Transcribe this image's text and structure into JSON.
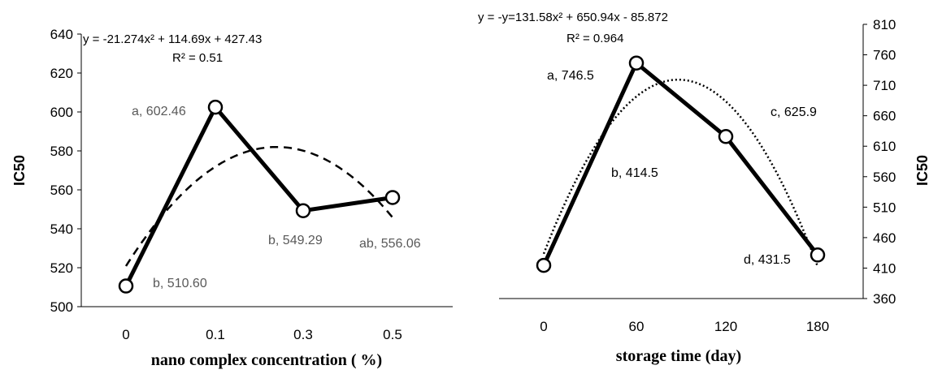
{
  "chart_data": [
    {
      "type": "line",
      "x_categories": [
        "0",
        "0.1",
        "0.3",
        "0.5"
      ],
      "series": [
        {
          "values": [
            510.6,
            602.46,
            549.29,
            556.06
          ],
          "labels": [
            "b, 510.60",
            "a, 602.46",
            "b, 549.29",
            "ab, 556.06"
          ]
        }
      ],
      "trendline": {
        "type": "polynomial",
        "order": 2,
        "coefficients": [
          -21.274,
          114.69,
          427.43
        ],
        "equation": "y = -21.274x² + 114.69x + 427.43",
        "r2": "R² = 0.51",
        "style": "dashed"
      },
      "xlabel": "nano complex concentration ( %)",
      "ylabel": "IC50",
      "y_axis_side": "left",
      "ylim": [
        500,
        640
      ],
      "yticks": [
        "500",
        "520",
        "540",
        "560",
        "580",
        "600",
        "620",
        "640"
      ],
      "grid": false
    },
    {
      "type": "line",
      "x_categories": [
        "0",
        "60",
        "120",
        "180"
      ],
      "series": [
        {
          "values": [
            414.5,
            746.5,
            625.9,
            431.5
          ],
          "labels": [
            "b, 414.5",
            "a, 746.5",
            "c, 625.9",
            "d, 431.5"
          ]
        }
      ],
      "trendline": {
        "type": "polynomial",
        "order": 2,
        "coefficients": [
          -131.58,
          650.94,
          -85.872
        ],
        "equation": "y = -y=131.58x² + 650.94x - 85.872",
        "r2": "R² = 0.964",
        "style": "dotted"
      },
      "xlabel": "storage time (day)",
      "ylabel": "IC50",
      "y_axis_side": "right",
      "ylim": [
        360,
        810
      ],
      "yticks": [
        "360",
        "410",
        "460",
        "510",
        "560",
        "610",
        "660",
        "710",
        "760",
        "810"
      ],
      "grid": false
    }
  ]
}
